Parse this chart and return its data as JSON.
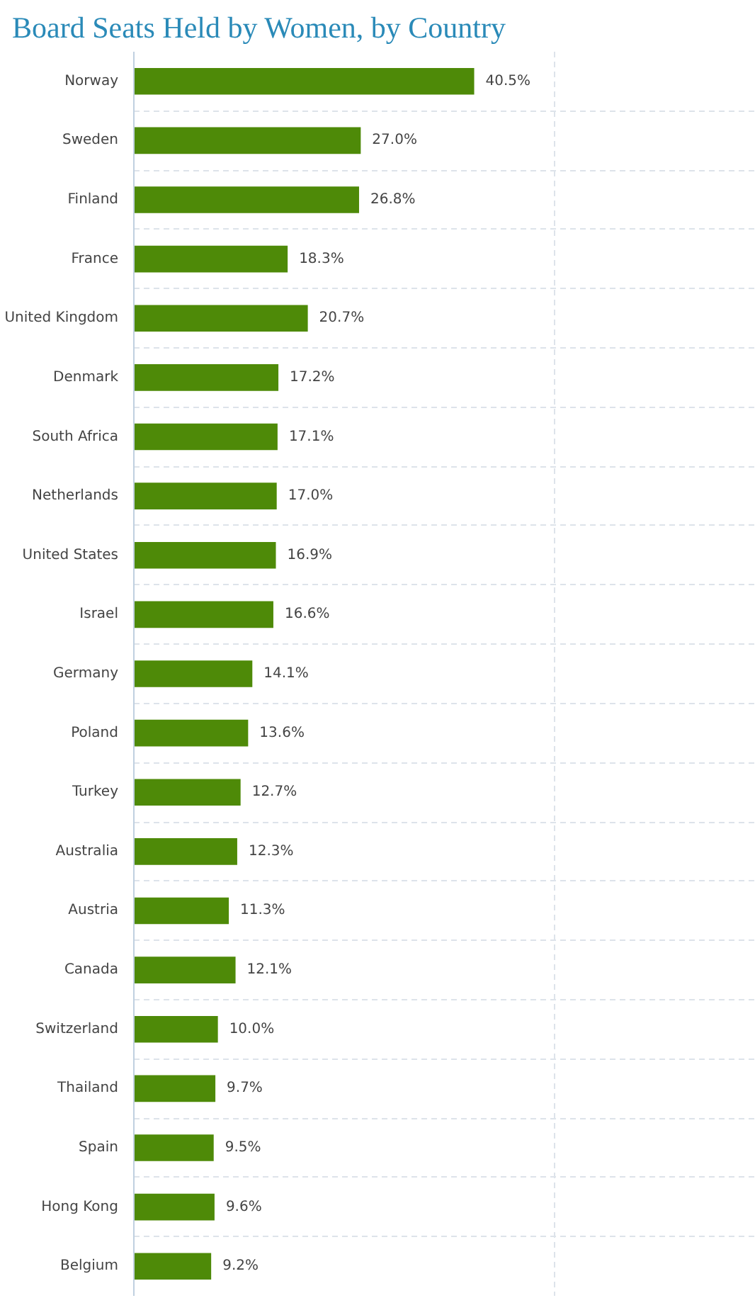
{
  "chart_data": {
    "type": "bar",
    "orientation": "horizontal",
    "title": "Board Seats Held by Women, by Country",
    "categories": [
      "Norway",
      "Sweden",
      "Finland",
      "France",
      "United Kingdom",
      "Denmark",
      "South Africa",
      "Netherlands",
      "United States",
      "Israel",
      "Germany",
      "Poland",
      "Turkey",
      "Australia",
      "Austria",
      "Canada",
      "Switzerland",
      "Thailand",
      "Spain",
      "Hong Kong",
      "Belgium"
    ],
    "values": [
      40.5,
      27.0,
      26.8,
      18.3,
      20.7,
      17.2,
      17.1,
      17.0,
      16.9,
      16.6,
      14.1,
      13.6,
      12.7,
      12.3,
      11.3,
      12.1,
      10.0,
      9.7,
      9.5,
      9.6,
      9.2
    ],
    "value_labels": [
      "40.5%",
      "27.0%",
      "26.8%",
      "18.3%",
      "20.7%",
      "17.2%",
      "17.1%",
      "17.0%",
      "16.9%",
      "16.6%",
      "14.1%",
      "13.6%",
      "12.7%",
      "12.3%",
      "11.3%",
      "12.1%",
      "10.0%",
      "9.7%",
      "9.5%",
      "9.6%",
      "9.2%"
    ],
    "color": "#4e8a08",
    "xlim": [
      0,
      74
    ],
    "xticks": [
      {
        "value": 0,
        "label": null
      },
      {
        "value": 50,
        "label": null
      }
    ],
    "tick_labels": "y",
    "grid": true
  }
}
